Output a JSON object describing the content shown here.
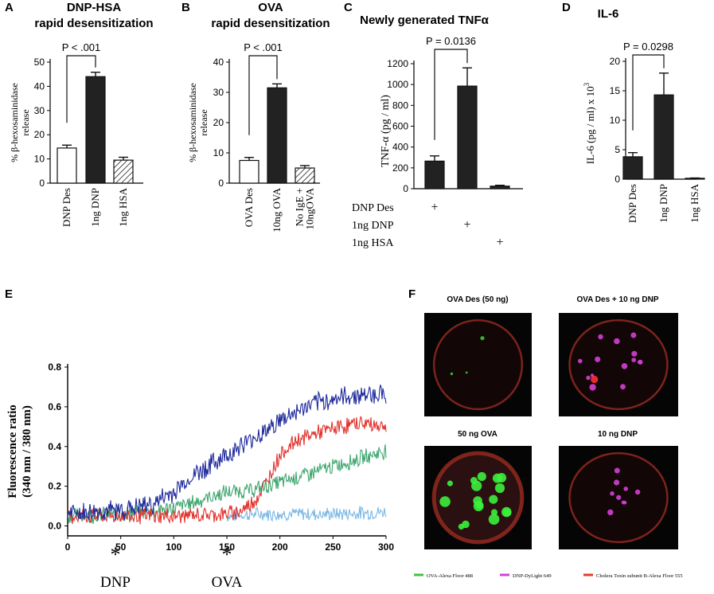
{
  "chart_data": [
    {
      "panel": "A",
      "type": "bar",
      "title": "DNP-HSA",
      "subtitle": "rapid desensitization",
      "ylabel": "% β-hexosaminidase release",
      "ylim": [
        0,
        50
      ],
      "yticks": [
        0,
        10,
        20,
        30,
        40,
        50
      ],
      "categories": [
        "DNP Des",
        "1ng DNP",
        "1ng HSA"
      ],
      "values": [
        14.5,
        44,
        9.5
      ],
      "errors": [
        1.2,
        1.8,
        1.2
      ],
      "fills": [
        "open",
        "solid",
        "hatched"
      ],
      "significance": {
        "label": "P < .001",
        "between": [
          0,
          1
        ]
      }
    },
    {
      "panel": "B",
      "type": "bar",
      "title": "OVA",
      "subtitle": "rapid desensitization",
      "ylabel": "% β-hexosaminidase release",
      "ylim": [
        0,
        40
      ],
      "yticks": [
        0,
        10,
        20,
        30,
        40
      ],
      "categories": [
        "OVA Des",
        "10ng OVA",
        "No IgE + 10ngOVA"
      ],
      "tick_lines": [
        [
          "OVA Des"
        ],
        [
          "10ng OVA"
        ],
        [
          "No IgE +",
          "10ngOVA"
        ]
      ],
      "values": [
        7.5,
        31.5,
        5
      ],
      "errors": [
        1,
        1.3,
        0.8
      ],
      "fills": [
        "open",
        "solid",
        "hatched"
      ],
      "significance": {
        "label": "P < .001",
        "between": [
          0,
          1
        ]
      }
    },
    {
      "panel": "C",
      "type": "bar",
      "title": "Newly generated TNFα",
      "ylabel": "TNF-α  (pg / ml)",
      "ylim": [
        0,
        1200
      ],
      "yticks": [
        0,
        200,
        400,
        600,
        800,
        1000,
        1200
      ],
      "categories": [
        "DNP Des",
        "1ng DNP",
        "1ng HSA"
      ],
      "values": [
        265,
        985,
        25
      ],
      "errors": [
        50,
        175,
        8
      ],
      "fills": [
        "solid",
        "solid",
        "solid"
      ],
      "significance": {
        "label": "P = 0.0136",
        "between": [
          0,
          1
        ]
      },
      "table_rows": [
        "DNP Des",
        "1ng DNP",
        "1ng HSA"
      ],
      "marker": "+"
    },
    {
      "panel": "D",
      "type": "bar",
      "title": "IL-6",
      "ylabel": "IL-6  (pg / ml) x 10",
      "ylabel_exp": "3",
      "ylim": [
        0,
        20
      ],
      "yticks": [
        0,
        5,
        10,
        15,
        20
      ],
      "categories": [
        "DNP Des",
        "1ng DNP",
        "1ng HSA"
      ],
      "values": [
        3.8,
        14.3,
        0.15
      ],
      "errors": [
        0.7,
        3.7,
        0.05
      ],
      "fills": [
        "solid",
        "solid",
        "solid"
      ],
      "significance": {
        "label": "P = 0.0298",
        "between": [
          0,
          1
        ]
      }
    },
    {
      "panel": "E",
      "type": "line",
      "ylabel_line1": "Fluorescence ratio",
      "ylabel_line2": "(340 nm / 380 nm)",
      "xlim": [
        0,
        300
      ],
      "ylim": [
        -0.05,
        0.8
      ],
      "xticks": [
        0,
        50,
        100,
        150,
        200,
        250,
        300
      ],
      "yticks": [
        0.0,
        0.2,
        0.4,
        0.6,
        0.8
      ],
      "ytick_labels": [
        "0.0",
        "0.2",
        "0.4",
        "0.6",
        "0.8"
      ],
      "markers": [
        {
          "x": 45,
          "label": "DNP",
          "symbol": "*"
        },
        {
          "x": 150,
          "label": "OVA",
          "symbol": "*"
        }
      ],
      "series": [
        {
          "name": "navy",
          "color": "#1f2a9c",
          "x": [
            0,
            50,
            80,
            100,
            120,
            150,
            175,
            200,
            225,
            250,
            275,
            300
          ],
          "y": [
            0.06,
            0.08,
            0.11,
            0.17,
            0.26,
            0.36,
            0.44,
            0.53,
            0.6,
            0.64,
            0.66,
            0.67
          ],
          "noise": 0.045
        },
        {
          "name": "red",
          "color": "#e2302a",
          "x": [
            0,
            50,
            100,
            150,
            165,
            180,
            190,
            200,
            215,
            230,
            250,
            275,
            300
          ],
          "y": [
            0.05,
            0.05,
            0.05,
            0.06,
            0.08,
            0.15,
            0.25,
            0.36,
            0.43,
            0.46,
            0.49,
            0.52,
            0.5
          ],
          "noise": 0.035
        },
        {
          "name": "green",
          "color": "#3fa66f",
          "x": [
            0,
            50,
            100,
            125,
            150,
            175,
            200,
            225,
            250,
            275,
            300
          ],
          "y": [
            0.05,
            0.06,
            0.09,
            0.13,
            0.17,
            0.18,
            0.22,
            0.26,
            0.3,
            0.34,
            0.38
          ],
          "noise": 0.035
        },
        {
          "name": "lightblue",
          "color": "#7bb8e6",
          "x": [
            0,
            50,
            100,
            150,
            175,
            200,
            250,
            300
          ],
          "y": [
            0.05,
            0.04,
            0.04,
            0.05,
            0.06,
            0.06,
            0.06,
            0.07
          ],
          "noise": 0.03,
          "start": 150
        }
      ]
    }
  ],
  "panel_labels": {
    "A": "A",
    "B": "B",
    "C": "C",
    "D": "D",
    "E": "E",
    "F": "F"
  },
  "microscopy": {
    "images": [
      {
        "title": "OVA Des (50 ng)"
      },
      {
        "title": "OVA Des + 10 ng DNP"
      },
      {
        "title": "50 ng OVA"
      },
      {
        "title": "10 ng DNP"
      }
    ],
    "legend": [
      {
        "label": "OVA-Alexa Floor 488",
        "color": "#3cc43c"
      },
      {
        "label": "DNP-DyLight 649",
        "color": "#d63fd6"
      },
      {
        "label": "Cholera Toxin subunit B-Alexa Floor 555",
        "color": "#e43a2a"
      }
    ]
  }
}
